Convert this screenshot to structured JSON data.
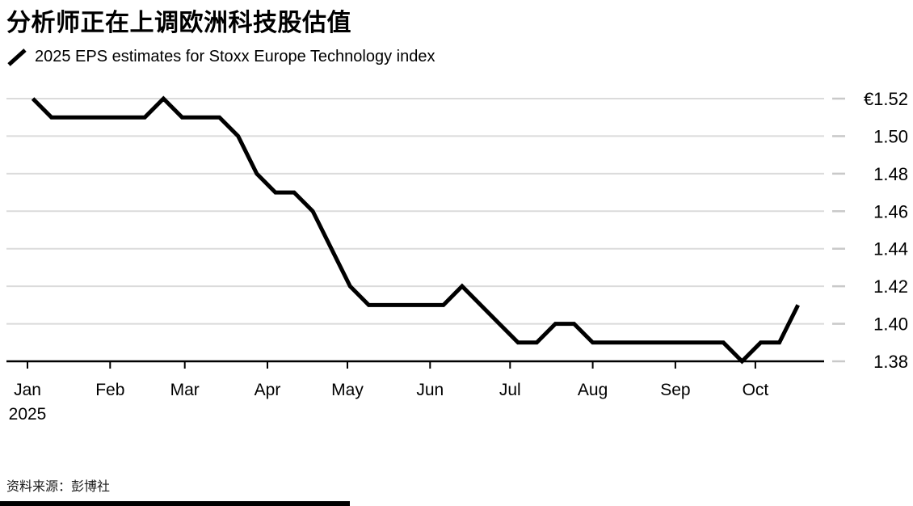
{
  "header": {
    "title": "分析师正在上调欧洲科技股估值",
    "legend_label": "2025 EPS estimates for Stoxx Europe Technology index"
  },
  "footer": {
    "source": "资料来源：彭博社"
  },
  "chart_data": {
    "type": "line",
    "title": "分析师正在上调欧洲科技股估值",
    "legend": "2025 EPS estimates for Stoxx Europe Technology index",
    "currency": "EUR",
    "grid": "horizontal",
    "legend_position": "top-left",
    "y_axis": {
      "side": "right",
      "min": 1.38,
      "max": 1.52,
      "ticks": [
        {
          "label": "€1.52",
          "value": 1.52
        },
        {
          "label": "1.50",
          "value": 1.5
        },
        {
          "label": "1.48",
          "value": 1.48
        },
        {
          "label": "1.46",
          "value": 1.46
        },
        {
          "label": "1.44",
          "value": 1.44
        },
        {
          "label": "1.42",
          "value": 1.42
        },
        {
          "label": "1.40",
          "value": 1.4
        },
        {
          "label": "1.38",
          "value": 1.38
        }
      ]
    },
    "x_axis": {
      "ticks": [
        {
          "label": "Jan",
          "date": "2025-01-01"
        },
        {
          "label": "Feb",
          "date": "2025-02-01"
        },
        {
          "label": "Mar",
          "date": "2025-03-01"
        },
        {
          "label": "Apr",
          "date": "2025-04-01"
        },
        {
          "label": "May",
          "date": "2025-05-01"
        },
        {
          "label": "Jun",
          "date": "2025-06-01"
        },
        {
          "label": "Jul",
          "date": "2025-07-01"
        },
        {
          "label": "Aug",
          "date": "2025-08-01"
        },
        {
          "label": "Sep",
          "date": "2025-09-01"
        },
        {
          "label": "Oct",
          "date": "2025-10-01"
        }
      ],
      "year_label": {
        "text": "2025",
        "under_tick": "Jan"
      }
    },
    "series": [
      {
        "name": "2025 EPS estimates for Stoxx Europe Technology index",
        "color": "#000000",
        "points": [
          [
            "2025-01-03",
            1.52
          ],
          [
            "2025-01-10",
            1.51
          ],
          [
            "2025-01-17",
            1.51
          ],
          [
            "2025-01-24",
            1.51
          ],
          [
            "2025-01-31",
            1.51
          ],
          [
            "2025-02-07",
            1.51
          ],
          [
            "2025-02-14",
            1.51
          ],
          [
            "2025-02-21",
            1.52
          ],
          [
            "2025-02-28",
            1.51
          ],
          [
            "2025-03-07",
            1.51
          ],
          [
            "2025-03-14",
            1.51
          ],
          [
            "2025-03-21",
            1.5
          ],
          [
            "2025-03-28",
            1.48
          ],
          [
            "2025-04-04",
            1.47
          ],
          [
            "2025-04-11",
            1.47
          ],
          [
            "2025-04-18",
            1.46
          ],
          [
            "2025-04-25",
            1.44
          ],
          [
            "2025-05-02",
            1.42
          ],
          [
            "2025-05-09",
            1.41
          ],
          [
            "2025-05-16",
            1.41
          ],
          [
            "2025-05-23",
            1.41
          ],
          [
            "2025-05-30",
            1.41
          ],
          [
            "2025-06-06",
            1.41
          ],
          [
            "2025-06-13",
            1.42
          ],
          [
            "2025-06-20",
            1.41
          ],
          [
            "2025-06-27",
            1.4
          ],
          [
            "2025-07-04",
            1.39
          ],
          [
            "2025-07-11",
            1.39
          ],
          [
            "2025-07-18",
            1.4
          ],
          [
            "2025-07-25",
            1.4
          ],
          [
            "2025-08-01",
            1.39
          ],
          [
            "2025-08-08",
            1.39
          ],
          [
            "2025-08-15",
            1.39
          ],
          [
            "2025-08-22",
            1.39
          ],
          [
            "2025-08-29",
            1.39
          ],
          [
            "2025-09-05",
            1.39
          ],
          [
            "2025-09-12",
            1.39
          ],
          [
            "2025-09-19",
            1.39
          ],
          [
            "2025-09-26",
            1.38
          ],
          [
            "2025-10-03",
            1.39
          ],
          [
            "2025-10-10",
            1.39
          ],
          [
            "2025-10-17",
            1.41
          ]
        ]
      }
    ],
    "colors": {
      "line": "#000000",
      "grid": "#dbdbdb",
      "axis": "#000000",
      "tick_dash": "#c9c9c9",
      "label": "#000000"
    }
  }
}
